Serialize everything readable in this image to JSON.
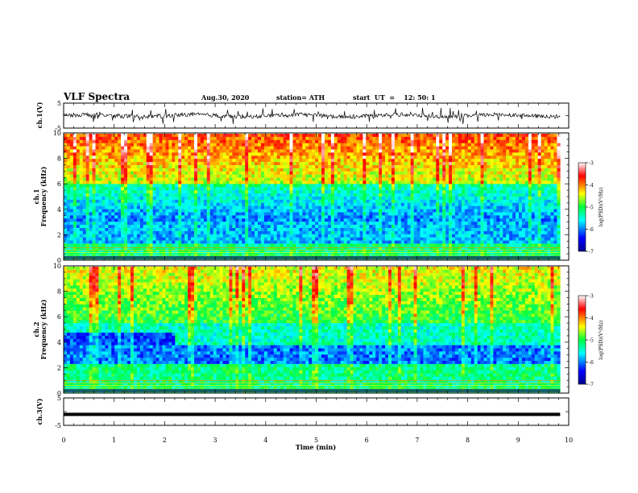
{
  "header": {
    "title": "VLF Spectra",
    "date": "Aug.30, 2020",
    "station": "station= ATH",
    "start": "start  UT  =    12: 50: 1"
  },
  "chart_data": [
    {
      "type": "line",
      "panel": "ch1-waveform",
      "ylabel": "ch.1(V)",
      "ylim": [
        -5,
        5
      ],
      "yticks": [
        "5",
        "-5"
      ],
      "color": "#000000"
    },
    {
      "type": "heatmap",
      "panel": "ch1-spectrogram",
      "ylabel_line1": "ch.1",
      "ylabel_line2": "Frequency  (kHz)",
      "ylim": [
        0,
        10
      ],
      "yticks": [
        "0",
        "2",
        "4",
        "6",
        "8",
        "10"
      ],
      "colorbar": {
        "label": "log(PSD)(V²/Hz)",
        "range": [
          -7,
          -3
        ],
        "ticks": [
          "-3",
          "-4",
          "-5",
          "-6",
          "-7"
        ]
      }
    },
    {
      "type": "heatmap",
      "panel": "ch2-spectrogram",
      "ylabel_line1": "ch.2",
      "ylabel_line2": "Frequency  (kHz)",
      "ylim": [
        0,
        10
      ],
      "yticks": [
        "0",
        "2",
        "4",
        "6",
        "8",
        "10"
      ],
      "colorbar": {
        "label": "log(PSD)(V²/Hz)",
        "range": [
          -7,
          -3
        ],
        "ticks": [
          "-3",
          "-4",
          "-5",
          "-6",
          "-7"
        ]
      }
    },
    {
      "type": "line",
      "panel": "ch3-waveform",
      "ylabel": "ch.3(V)",
      "ylim": [
        -5,
        5
      ],
      "yticks": [
        "5",
        "-5"
      ],
      "value": -1,
      "color": "#000000"
    }
  ],
  "xaxis": {
    "label": "Time  (min)",
    "range": [
      0,
      10
    ],
    "ticks": [
      "0",
      "1",
      "2",
      "3",
      "4",
      "5",
      "6",
      "7",
      "8",
      "9",
      "10"
    ],
    "data_end": 9.83
  }
}
